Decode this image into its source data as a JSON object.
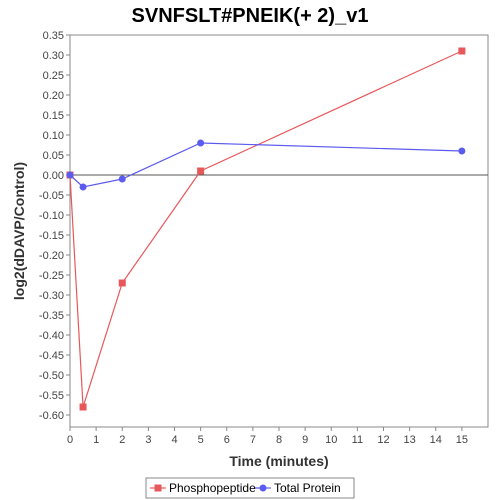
{
  "chart_data": {
    "type": "line",
    "title": "SVNFSLT#PNEIK(+ 2)_v1",
    "xlabel": "Time (minutes)",
    "ylabel": "log2(dDAVP/Control)",
    "xlim": [
      0,
      16
    ],
    "ylim": [
      -0.63,
      0.35
    ],
    "x_ticks": [
      "0",
      "1",
      "2",
      "3",
      "4",
      "5",
      "6",
      "7",
      "8",
      "9",
      "10",
      "11",
      "12",
      "13",
      "14",
      "15"
    ],
    "y_ticks": [
      "0.35",
      "0.30",
      "0.25",
      "0.20",
      "0.15",
      "0.10",
      "0.05",
      "0.00",
      "-0.05",
      "-0.10",
      "-0.15",
      "-0.20",
      "-0.25",
      "-0.30",
      "-0.35",
      "-0.40",
      "-0.45",
      "-0.50",
      "-0.55",
      "-0.60"
    ],
    "grid": false,
    "legend_position": "bottom",
    "series": [
      {
        "name": "Phosphopeptide",
        "color": "#e8575a",
        "marker": "square",
        "x": [
          0,
          0.5,
          2,
          5,
          15
        ],
        "y": [
          0.0,
          -0.58,
          -0.27,
          0.01,
          0.31
        ]
      },
      {
        "name": "Total Protein",
        "color": "#5b5bef",
        "marker": "circle",
        "x": [
          0,
          0.5,
          2,
          5,
          15
        ],
        "y": [
          0.0,
          -0.03,
          -0.01,
          0.08,
          0.06
        ]
      }
    ]
  }
}
